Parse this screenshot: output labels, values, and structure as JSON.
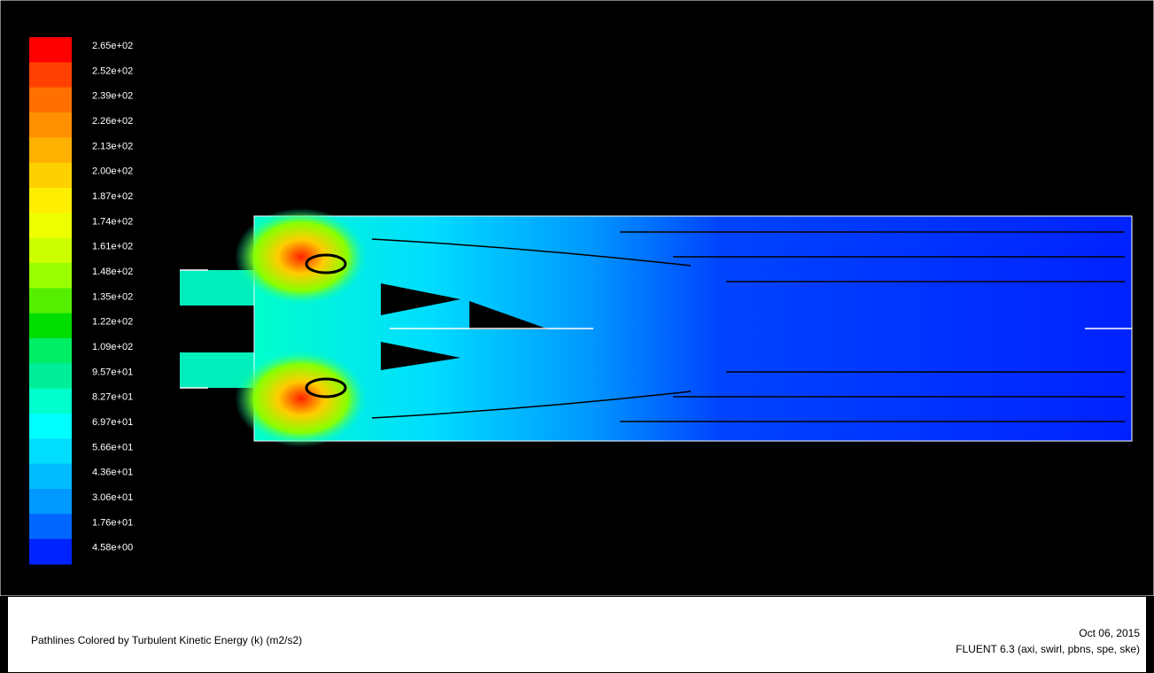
{
  "colorbar": {
    "labels": [
      "2.65e+02",
      "2.52e+02",
      "2.39e+02",
      "2.26e+02",
      "2.13e+02",
      "2.00e+02",
      "1.87e+02",
      "1.74e+02",
      "1.61e+02",
      "1.48e+02",
      "1.35e+02",
      "1.22e+02",
      "1.09e+02",
      "9.57e+01",
      "8.27e+01",
      "6.97e+01",
      "5.66e+01",
      "4.36e+01",
      "3.06e+01",
      "1.76e+01",
      "4.58e+00"
    ],
    "colors": [
      "#ff0000",
      "#ff4000",
      "#ff7000",
      "#ff9000",
      "#ffb000",
      "#ffd000",
      "#ffee00",
      "#eeff00",
      "#ccff00",
      "#99ff00",
      "#55ee00",
      "#00dd00",
      "#00ee66",
      "#00ee99",
      "#00ffcc",
      "#00ffff",
      "#00ddff",
      "#00bbff",
      "#0099ff",
      "#0066ff",
      "#0022ff"
    ]
  },
  "footer": {
    "title": "Pathlines Colored by Turbulent Kinetic Energy (k) (m2/s2)",
    "date": "Oct 06, 2015",
    "version": "FLUENT 6.3 (axi, swirl, pbns, spe, ske)"
  }
}
